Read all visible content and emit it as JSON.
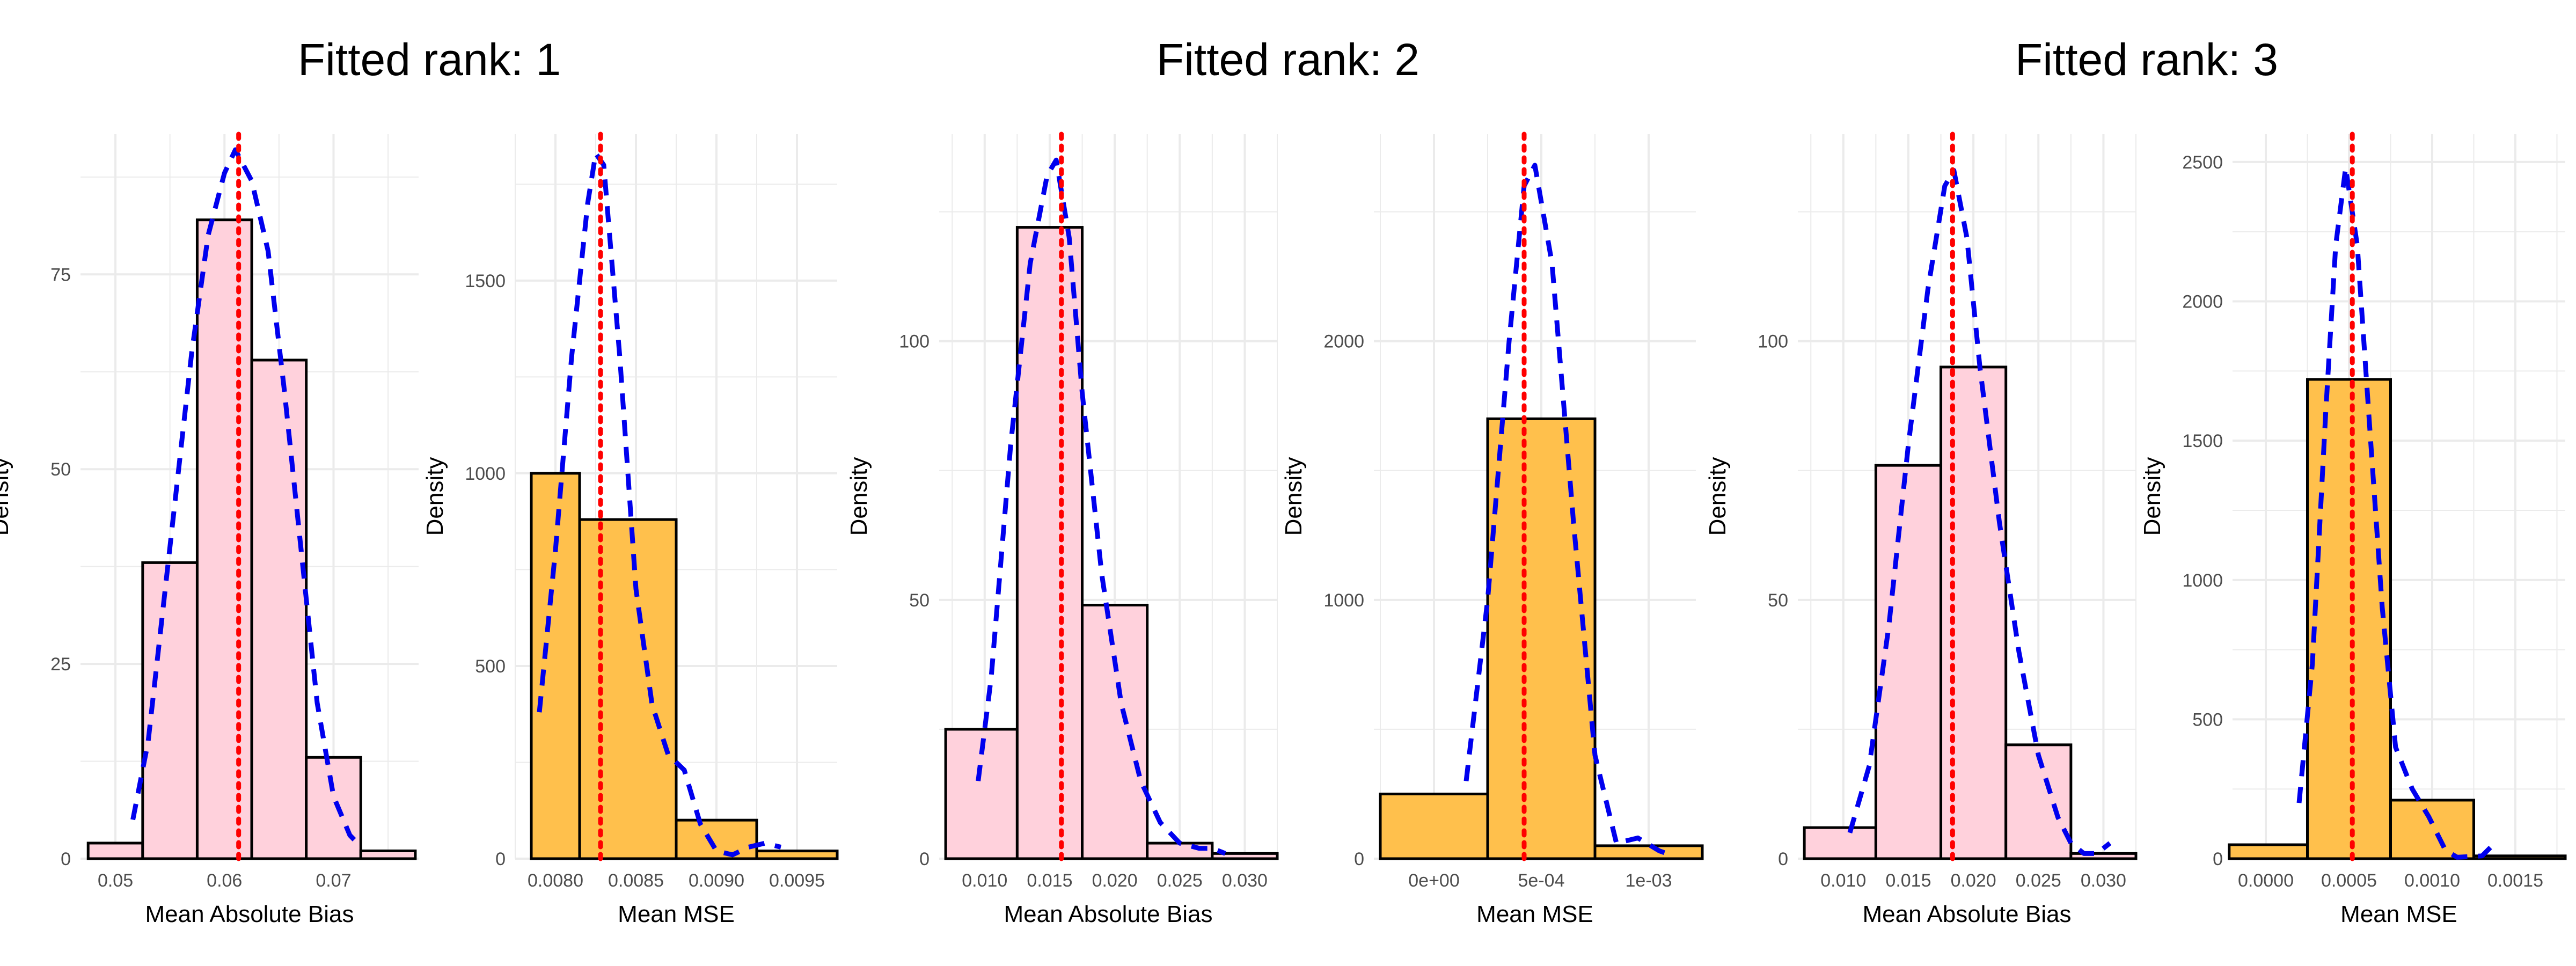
{
  "group_titles": [
    "Fitted rank: 1",
    "Fitted rank: 2",
    "Fitted rank: 3"
  ],
  "colors": {
    "bias_fill": "#FFD1DC",
    "mse_fill": "#FFC04C",
    "bar_stroke": "#000000",
    "density_line": "#0000EE",
    "mean_line": "#FF0000",
    "grid": "#EBEBEB"
  },
  "chart_data": [
    {
      "type": "histogram",
      "group": 0,
      "xlabel": "Mean Absolute Bias",
      "ylabel": "Density",
      "xlim": [
        0.0468,
        0.0778
      ],
      "ylim": [
        0,
        93
      ],
      "xticks": [
        0.05,
        0.06,
        0.07
      ],
      "xtick_labels": [
        "0.05",
        "0.06",
        "0.07"
      ],
      "yticks": [
        0,
        25,
        50,
        75
      ],
      "ytick_labels": [
        "0",
        "25",
        "50",
        "75"
      ],
      "bins": [
        {
          "x0": 0.0475,
          "x1": 0.0525,
          "y": 2
        },
        {
          "x0": 0.0525,
          "x1": 0.0575,
          "y": 38
        },
        {
          "x0": 0.0575,
          "x1": 0.0625,
          "y": 82
        },
        {
          "x0": 0.0625,
          "x1": 0.0675,
          "y": 64
        },
        {
          "x0": 0.0675,
          "x1": 0.0725,
          "y": 13
        },
        {
          "x0": 0.0725,
          "x1": 0.0775,
          "y": 1
        }
      ],
      "density": [
        [
          0.0516,
          5
        ],
        [
          0.053,
          15
        ],
        [
          0.055,
          40
        ],
        [
          0.057,
          65
        ],
        [
          0.0585,
          80
        ],
        [
          0.06,
          88
        ],
        [
          0.061,
          91
        ],
        [
          0.0625,
          87
        ],
        [
          0.064,
          78
        ],
        [
          0.0655,
          60
        ],
        [
          0.067,
          40
        ],
        [
          0.0685,
          20
        ],
        [
          0.07,
          8
        ],
        [
          0.0715,
          3
        ],
        [
          0.0722,
          2
        ]
      ],
      "mean": 0.0613
    },
    {
      "type": "histogram",
      "group": 0,
      "xlabel": "Mean MSE",
      "ylabel": "Density",
      "xlim": [
        0.00775,
        0.00975
      ],
      "ylim": [
        0,
        1880
      ],
      "xticks": [
        0.008,
        0.0085,
        0.009,
        0.0095
      ],
      "xtick_labels": [
        "0.0080",
        "0.0085",
        "0.0090",
        "0.0095"
      ],
      "yticks": [
        0,
        500,
        1000,
        1500
      ],
      "ytick_labels": [
        "0",
        "500",
        "1000",
        "1500"
      ],
      "bins": [
        {
          "x0": 0.00785,
          "x1": 0.00815,
          "y": 1000
        },
        {
          "x0": 0.00815,
          "x1": 0.00875,
          "y": 880
        },
        {
          "x0": 0.00875,
          "x1": 0.00925,
          "y": 100
        },
        {
          "x0": 0.00925,
          "x1": 0.00975,
          "y": 20
        }
      ],
      "density": [
        [
          0.0079,
          380
        ],
        [
          0.008,
          800
        ],
        [
          0.0081,
          1300
        ],
        [
          0.0082,
          1700
        ],
        [
          0.00825,
          1830
        ],
        [
          0.0083,
          1800
        ],
        [
          0.0084,
          1300
        ],
        [
          0.0085,
          700
        ],
        [
          0.0086,
          400
        ],
        [
          0.0087,
          270
        ],
        [
          0.0088,
          230
        ],
        [
          0.0089,
          90
        ],
        [
          0.009,
          20
        ],
        [
          0.0091,
          10
        ],
        [
          0.0092,
          30
        ],
        [
          0.0093,
          40
        ],
        [
          0.0094,
          30
        ]
      ],
      "mean": 0.00828
    },
    {
      "type": "histogram",
      "group": 1,
      "xlabel": "Mean Absolute Bias",
      "ylabel": "Density",
      "xlim": [
        0.0065,
        0.0325
      ],
      "ylim": [
        0,
        140
      ],
      "xticks": [
        0.01,
        0.015,
        0.02,
        0.025,
        0.03
      ],
      "xtick_labels": [
        "0.010",
        "0.015",
        "0.020",
        "0.025",
        "0.030"
      ],
      "yticks": [
        0,
        50,
        100
      ],
      "ytick_labels": [
        "0",
        "50",
        "100"
      ],
      "bins": [
        {
          "x0": 0.007,
          "x1": 0.0125,
          "y": 25
        },
        {
          "x0": 0.0125,
          "x1": 0.0175,
          "y": 122
        },
        {
          "x0": 0.0175,
          "x1": 0.0225,
          "y": 49
        },
        {
          "x0": 0.0225,
          "x1": 0.0275,
          "y": 3
        },
        {
          "x0": 0.0275,
          "x1": 0.0325,
          "y": 1
        }
      ],
      "density": [
        [
          0.0095,
          15
        ],
        [
          0.0105,
          35
        ],
        [
          0.012,
          80
        ],
        [
          0.0135,
          115
        ],
        [
          0.0148,
          132
        ],
        [
          0.0155,
          135
        ],
        [
          0.0165,
          120
        ],
        [
          0.0175,
          90
        ],
        [
          0.019,
          55
        ],
        [
          0.0205,
          30
        ],
        [
          0.022,
          15
        ],
        [
          0.0235,
          7
        ],
        [
          0.025,
          3
        ],
        [
          0.0265,
          2
        ],
        [
          0.0275,
          2
        ],
        [
          0.0285,
          1
        ]
      ],
      "mean": 0.0159
    },
    {
      "type": "histogram",
      "group": 1,
      "xlabel": "Mean MSE",
      "ylabel": "Density",
      "xlim": [
        -0.00028,
        0.00122
      ],
      "ylim": [
        0,
        2800
      ],
      "xticks": [
        0,
        0.0005,
        0.001
      ],
      "xtick_labels": [
        "0e+00",
        "5e-04",
        "1e-03"
      ],
      "yticks": [
        0,
        1000,
        2000
      ],
      "ytick_labels": [
        "0",
        "1000",
        "2000"
      ],
      "bins": [
        {
          "x0": -0.00025,
          "x1": 0.00025,
          "y": 250
        },
        {
          "x0": 0.00025,
          "x1": 0.00075,
          "y": 1700
        },
        {
          "x0": 0.00075,
          "x1": 0.00125,
          "y": 50
        }
      ],
      "density": [
        [
          0.00015,
          300
        ],
        [
          0.00025,
          1000
        ],
        [
          0.00035,
          2000
        ],
        [
          0.00042,
          2600
        ],
        [
          0.00047,
          2680
        ],
        [
          0.00055,
          2300
        ],
        [
          0.00065,
          1300
        ],
        [
          0.00075,
          400
        ],
        [
          0.00085,
          60
        ],
        [
          0.00095,
          80
        ],
        [
          0.00105,
          30
        ],
        [
          0.00112,
          10
        ]
      ],
      "mean": 0.00042
    },
    {
      "type": "histogram",
      "group": 2,
      "xlabel": "Mean Absolute Bias",
      "ylabel": "Density",
      "xlim": [
        0.0065,
        0.0325
      ],
      "ylim": [
        0,
        140
      ],
      "xticks": [
        0.01,
        0.015,
        0.02,
        0.025,
        0.03
      ],
      "xtick_labels": [
        "0.010",
        "0.015",
        "0.020",
        "0.025",
        "0.030"
      ],
      "yticks": [
        0,
        50,
        100
      ],
      "ytick_labels": [
        "0",
        "50",
        "100"
      ],
      "bins": [
        {
          "x0": 0.007,
          "x1": 0.0125,
          "y": 6
        },
        {
          "x0": 0.0125,
          "x1": 0.0175,
          "y": 76
        },
        {
          "x0": 0.0175,
          "x1": 0.0225,
          "y": 95
        },
        {
          "x0": 0.0225,
          "x1": 0.0275,
          "y": 22
        },
        {
          "x0": 0.0275,
          "x1": 0.0325,
          "y": 1
        }
      ],
      "density": [
        [
          0.0105,
          5
        ],
        [
          0.012,
          18
        ],
        [
          0.0135,
          45
        ],
        [
          0.015,
          80
        ],
        [
          0.0165,
          110
        ],
        [
          0.0178,
          130
        ],
        [
          0.0185,
          133
        ],
        [
          0.0195,
          120
        ],
        [
          0.0205,
          95
        ],
        [
          0.022,
          65
        ],
        [
          0.0235,
          40
        ],
        [
          0.025,
          20
        ],
        [
          0.0265,
          8
        ],
        [
          0.0275,
          3
        ],
        [
          0.0285,
          1
        ],
        [
          0.0295,
          1
        ],
        [
          0.0305,
          3
        ]
      ],
      "mean": 0.0184
    },
    {
      "type": "histogram",
      "group": 2,
      "xlabel": "Mean MSE",
      "ylabel": "Density",
      "xlim": [
        -0.0002,
        0.0018
      ],
      "ylim": [
        0,
        2600
      ],
      "xticks": [
        0,
        0.0005,
        0.001,
        0.0015
      ],
      "xtick_labels": [
        "0.0000",
        "0.0005",
        "0.0010",
        "0.0015"
      ],
      "yticks": [
        0,
        500,
        1000,
        1500,
        2000,
        2500
      ],
      "ytick_labels": [
        "0",
        "500",
        "1000",
        "1500",
        "2000",
        "2500"
      ],
      "bins": [
        {
          "x0": -0.00022,
          "x1": 0.00025,
          "y": 50
        },
        {
          "x0": 0.00025,
          "x1": 0.00075,
          "y": 1720
        },
        {
          "x0": 0.00075,
          "x1": 0.00125,
          "y": 210
        },
        {
          "x0": 0.00125,
          "x1": 0.0018,
          "y": 10
        }
      ],
      "density": [
        [
          0.0002,
          200
        ],
        [
          0.00028,
          700
        ],
        [
          0.00036,
          1600
        ],
        [
          0.00042,
          2200
        ],
        [
          0.00048,
          2480
        ],
        [
          0.00055,
          2200
        ],
        [
          0.00063,
          1500
        ],
        [
          0.0007,
          900
        ],
        [
          0.00078,
          400
        ],
        [
          0.00088,
          250
        ],
        [
          0.00098,
          150
        ],
        [
          0.00108,
          30
        ],
        [
          0.00115,
          5
        ],
        [
          0.0013,
          10
        ],
        [
          0.00135,
          40
        ]
      ],
      "mean": 0.00052
    }
  ]
}
